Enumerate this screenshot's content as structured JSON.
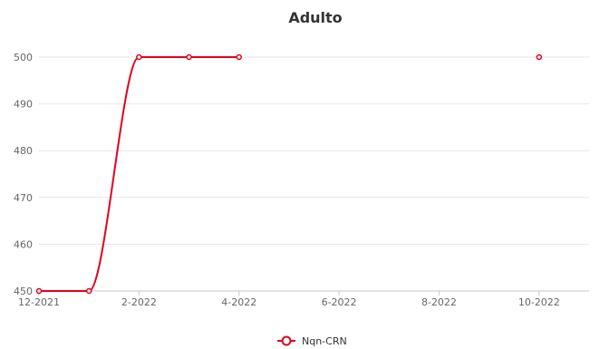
{
  "chart_data": {
    "type": "line",
    "title": "Adulto",
    "xlabel": "",
    "ylabel": "",
    "x_ticks": [
      "12-2021",
      "2-2022",
      "4-2022",
      "6-2022",
      "8-2022",
      "10-2022"
    ],
    "xlim": [
      "2021-12",
      "2022-11"
    ],
    "ylim": [
      450,
      500
    ],
    "y_ticks": [
      450,
      460,
      470,
      480,
      490,
      500
    ],
    "grid": true,
    "legend_position": "bottom-center",
    "series": [
      {
        "name": "Nqn-CRN",
        "color": "#e3001b",
        "smooth": true,
        "points": [
          {
            "x": "2021-12",
            "y": 450
          },
          {
            "x": "2022-01",
            "y": 450
          },
          {
            "x": "2022-02",
            "y": 500
          },
          {
            "x": "2022-03",
            "y": 500
          },
          {
            "x": "2022-04",
            "y": 500
          },
          {
            "x": "2022-10",
            "y": 500
          }
        ],
        "connected_points": 5
      }
    ]
  }
}
